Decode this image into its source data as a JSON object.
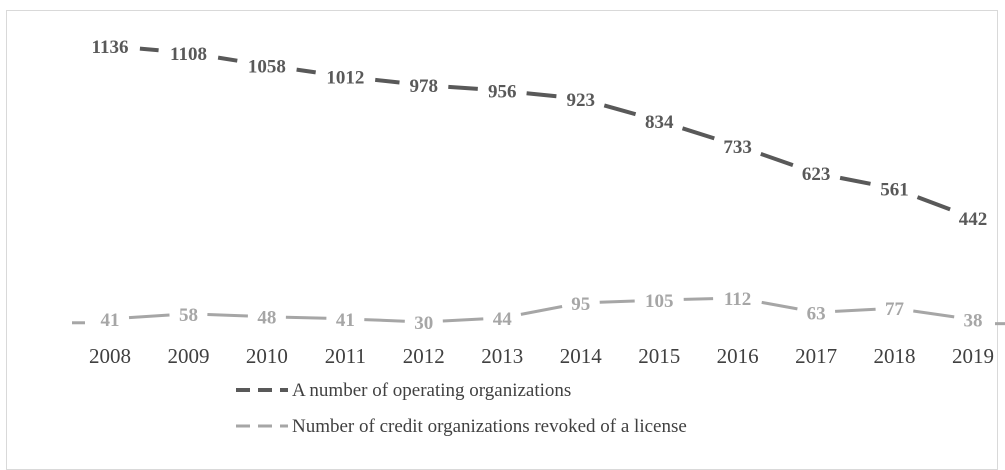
{
  "chart_data": {
    "type": "line",
    "x": [
      "2008",
      "2009",
      "2010",
      "2011",
      "2012",
      "2013",
      "2014",
      "2015",
      "2016",
      "2017",
      "2018",
      "2019"
    ],
    "series": [
      {
        "name": "A number of operating organizations",
        "values": [
          1136,
          1108,
          1058,
          1012,
          978,
          956,
          923,
          834,
          733,
          623,
          561,
          442
        ],
        "color": "#595959"
      },
      {
        "name": "Number of credit organizations revoked of a license",
        "values": [
          41,
          58,
          48,
          41,
          30,
          44,
          95,
          105,
          112,
          63,
          77,
          38
        ],
        "color": "#a6a6a6"
      }
    ],
    "legend_position": "bottom",
    "grid": false,
    "line_style": "dashed"
  }
}
